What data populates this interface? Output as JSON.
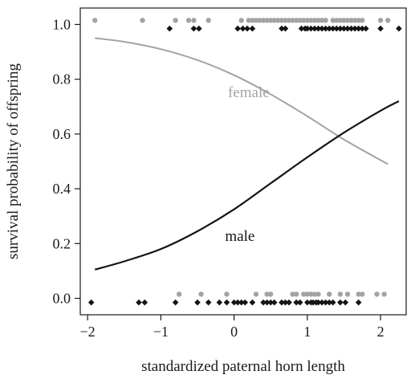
{
  "chart_data": {
    "type": "scatter",
    "title": "",
    "xlabel": "standardized paternal horn length",
    "ylabel": "survival probability of offspring",
    "xlim": [
      -2.1,
      2.35
    ],
    "ylim": [
      -0.06,
      1.06
    ],
    "xticks": [
      -2,
      -1,
      0,
      1,
      2
    ],
    "yticks": [
      0.0,
      0.2,
      0.4,
      0.6,
      0.8,
      1.0
    ],
    "xtick_labels": [
      "−2",
      "−1",
      "0",
      "1",
      "2"
    ],
    "ytick_labels": [
      "0.0",
      "0.2",
      "0.4",
      "0.6",
      "0.8",
      "1.0"
    ],
    "grid": false,
    "colors": {
      "female": "#a3a3a3",
      "male": "#141414",
      "axis": "#1a1a1a"
    },
    "curves": [
      {
        "label": "female",
        "x": [
          -1.9,
          -1.5,
          -1.0,
          -0.5,
          0.0,
          0.5,
          1.0,
          1.5,
          2.1
        ],
        "y": [
          0.95,
          0.937,
          0.91,
          0.87,
          0.815,
          0.745,
          0.665,
          0.58,
          0.49
        ]
      },
      {
        "label": "male",
        "x": [
          -1.9,
          -1.5,
          -1.0,
          -0.5,
          0.0,
          0.5,
          1.0,
          1.5,
          2.0,
          2.25
        ],
        "y": [
          0.105,
          0.135,
          0.18,
          0.245,
          0.325,
          0.42,
          0.515,
          0.605,
          0.685,
          0.72
        ]
      }
    ],
    "points": {
      "female_survived_x": [
        -1.9,
        -1.25,
        -0.8,
        -0.62,
        -0.55,
        -0.35,
        0.1,
        0.2,
        0.25,
        0.3,
        0.35,
        0.4,
        0.45,
        0.5,
        0.55,
        0.6,
        0.65,
        0.7,
        0.75,
        0.8,
        0.85,
        0.9,
        0.95,
        1.0,
        1.05,
        1.1,
        1.15,
        1.2,
        1.25,
        1.35,
        1.4,
        1.45,
        1.5,
        1.55,
        1.6,
        1.65,
        1.7,
        1.75,
        2.0,
        2.1
      ],
      "male_survived_x": [
        -0.88,
        -0.55,
        -0.48,
        0.05,
        0.12,
        0.18,
        0.25,
        0.65,
        0.7,
        0.92,
        0.97,
        1.0,
        1.05,
        1.1,
        1.15,
        1.2,
        1.25,
        1.3,
        1.35,
        1.4,
        1.45,
        1.5,
        1.55,
        1.6,
        1.65,
        1.7,
        1.75,
        1.8,
        2.0,
        2.25
      ],
      "female_died_x": [
        -0.75,
        -0.45,
        -0.1,
        0.3,
        0.45,
        0.5,
        0.8,
        0.85,
        0.95,
        1.0,
        1.05,
        1.1,
        1.15,
        1.3,
        1.45,
        1.55,
        1.7,
        1.75,
        1.95,
        2.05
      ],
      "male_died_x": [
        -1.95,
        -1.3,
        -1.22,
        -0.8,
        -0.5,
        -0.35,
        -0.2,
        -0.1,
        0.0,
        0.05,
        0.1,
        0.15,
        0.25,
        0.4,
        0.45,
        0.5,
        0.55,
        0.65,
        0.7,
        0.75,
        0.85,
        0.9,
        1.0,
        1.05,
        1.08,
        1.12,
        1.15,
        1.2,
        1.25,
        1.3,
        1.35,
        1.45,
        1.52,
        1.7
      ],
      "female_y_survived": 1.015,
      "male_y_survived": 0.985,
      "female_y_died": 0.015,
      "male_y_died": -0.015
    }
  }
}
